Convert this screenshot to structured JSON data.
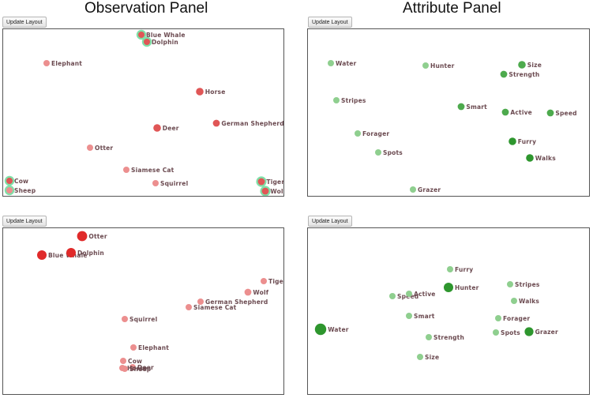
{
  "headers": {
    "observation": "Observation Panel",
    "attribute": "Attribute Panel"
  },
  "update_label": "Update Layout",
  "colors": {
    "obs_fill": "#e05656",
    "obs_fill_strong": "#e02a2a",
    "obs_fill_light": "#ec8f8f",
    "attr_fill": "#8fcf8f",
    "attr_fill_strong": "#2e962e",
    "attr_fill_mid": "#4daa4d",
    "highlight_ring": "#7fe0a8"
  },
  "panels": [
    {
      "id": "observation-top",
      "kind": "observation",
      "points": [
        {
          "label": "Blue Whale",
          "size": 1,
          "shade": "mid",
          "highlight": true
        },
        {
          "label": "Dolphin",
          "size": 1,
          "shade": "mid",
          "highlight": true
        },
        {
          "label": "Elephant",
          "size": 1,
          "shade": "light",
          "highlight": false
        },
        {
          "label": "Horse",
          "size": 1.2,
          "shade": "mid",
          "highlight": false
        },
        {
          "label": "Deer",
          "size": 1.2,
          "shade": "mid",
          "highlight": false
        },
        {
          "label": "German Shepherd",
          "size": 1.1,
          "shade": "mid",
          "highlight": false
        },
        {
          "label": "Otter",
          "size": 1,
          "shade": "light",
          "highlight": false
        },
        {
          "label": "Siamese Cat",
          "size": 1,
          "shade": "light",
          "highlight": false
        },
        {
          "label": "Squirrel",
          "size": 1,
          "shade": "light",
          "highlight": false
        },
        {
          "label": "Cow",
          "size": 1,
          "shade": "mid",
          "highlight": true
        },
        {
          "label": "Sheep",
          "size": 1,
          "shade": "light",
          "highlight": true
        },
        {
          "label": "Tiger",
          "size": 1.1,
          "shade": "mid",
          "highlight": true
        },
        {
          "label": "Wolf",
          "size": 1.1,
          "shade": "mid",
          "highlight": true
        }
      ]
    },
    {
      "id": "attribute-top",
      "kind": "attribute",
      "points": [
        {
          "label": "Water",
          "size": 1,
          "shade": "light"
        },
        {
          "label": "Hunter",
          "size": 1,
          "shade": "light"
        },
        {
          "label": "Size",
          "size": 1.2,
          "shade": "mid"
        },
        {
          "label": "Strength",
          "size": 1.1,
          "shade": "mid"
        },
        {
          "label": "Stripes",
          "size": 1,
          "shade": "light"
        },
        {
          "label": "Smart",
          "size": 1.1,
          "shade": "mid"
        },
        {
          "label": "Active",
          "size": 1.1,
          "shade": "mid"
        },
        {
          "label": "Speed",
          "size": 1.1,
          "shade": "mid"
        },
        {
          "label": "Forager",
          "size": 1,
          "shade": "light"
        },
        {
          "label": "Furry",
          "size": 1.2,
          "shade": "strong"
        },
        {
          "label": "Spots",
          "size": 1,
          "shade": "light"
        },
        {
          "label": "Walks",
          "size": 1.2,
          "shade": "strong"
        },
        {
          "label": "Grazer",
          "size": 1,
          "shade": "light"
        }
      ]
    },
    {
      "id": "observation-bottom",
      "kind": "observation",
      "points": [
        {
          "label": "Otter",
          "size": 1.6,
          "shade": "strong",
          "highlight": false
        },
        {
          "label": "Blue Whale",
          "size": 1.5,
          "shade": "strong",
          "highlight": false
        },
        {
          "label": "Dolphin",
          "size": 1.5,
          "shade": "strong",
          "highlight": false
        },
        {
          "label": "Tiger",
          "size": 1,
          "shade": "light",
          "highlight": false
        },
        {
          "label": "Wolf",
          "size": 1.1,
          "shade": "light",
          "highlight": false
        },
        {
          "label": "German Shepherd",
          "size": 1,
          "shade": "light",
          "highlight": false
        },
        {
          "label": "Siamese Cat",
          "size": 1,
          "shade": "light",
          "highlight": false
        },
        {
          "label": "Squirrel",
          "size": 1,
          "shade": "light",
          "highlight": false
        },
        {
          "label": "Elephant",
          "size": 1,
          "shade": "light",
          "highlight": false
        },
        {
          "label": "Cow",
          "size": 1,
          "shade": "light",
          "highlight": false
        },
        {
          "label": "Deer",
          "size": 1,
          "shade": "light",
          "highlight": false
        },
        {
          "label": "Horse",
          "size": 1,
          "shade": "light",
          "highlight": false
        },
        {
          "label": "Sheep",
          "size": 1,
          "shade": "light",
          "highlight": false
        }
      ]
    },
    {
      "id": "attribute-bottom",
      "kind": "attribute",
      "points": [
        {
          "label": "Furry",
          "size": 1,
          "shade": "light"
        },
        {
          "label": "Hunter",
          "size": 1.5,
          "shade": "strong"
        },
        {
          "label": "Stripes",
          "size": 1,
          "shade": "light"
        },
        {
          "label": "Speed",
          "size": 1,
          "shade": "light"
        },
        {
          "label": "Active",
          "size": 1,
          "shade": "light"
        },
        {
          "label": "Walks",
          "size": 1,
          "shade": "light"
        },
        {
          "label": "Smart",
          "size": 1,
          "shade": "light"
        },
        {
          "label": "Forager",
          "size": 1,
          "shade": "light"
        },
        {
          "label": "Water",
          "size": 1.8,
          "shade": "strong"
        },
        {
          "label": "Strength",
          "size": 1,
          "shade": "light"
        },
        {
          "label": "Spots",
          "size": 1,
          "shade": "light"
        },
        {
          "label": "Grazer",
          "size": 1.4,
          "shade": "strong"
        },
        {
          "label": "Size",
          "size": 1,
          "shade": "light"
        }
      ]
    }
  ]
}
